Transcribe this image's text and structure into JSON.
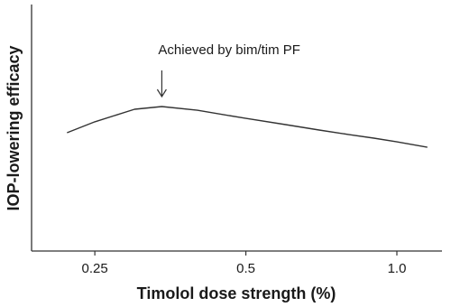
{
  "chart_data": {
    "type": "line",
    "x_label": "Timolol dose strength (%)",
    "y_label": "IOP-lowering efficacy",
    "annotation": {
      "text": "Achieved by bim/tim PF",
      "x": 0.34
    },
    "x": [
      0.22,
      0.25,
      0.3,
      0.34,
      0.4,
      0.5,
      0.6,
      0.7,
      0.8,
      0.9,
      1.0,
      1.15
    ],
    "values": [
      48,
      52.4,
      57.5,
      58.6,
      57.1,
      53.8,
      51.3,
      49.1,
      47.3,
      45.8,
      44.3,
      42.1
    ],
    "color": "#333333",
    "xlim": [
      0.187,
      1.23
    ],
    "ylim": [
      0,
      100
    ],
    "xticks": [
      0.25,
      0.5,
      {
        "value": 1,
        "label": "1.0"
      }
    ],
    "xscale": "log"
  }
}
